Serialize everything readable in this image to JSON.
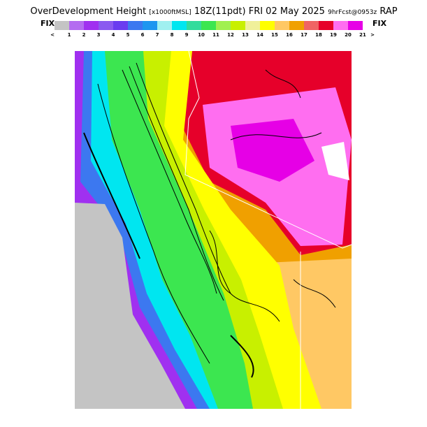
{
  "header": {
    "title_parts": [
      "OverDevelopment Height",
      "[x1000ftMSL]",
      "18Z(11pdt) FRI 02 May 2025",
      "9hrFcst@0953z",
      "RAP"
    ],
    "left_label": "FIX",
    "right_label": "FIX"
  },
  "legend": {
    "labels": [
      "<",
      "1",
      "2",
      "3",
      "4",
      "5",
      "6",
      "7",
      "8",
      "9",
      "10",
      "11",
      "12",
      "13",
      "14",
      "15",
      "16",
      "17",
      "18",
      "19",
      "20",
      "21",
      ">"
    ],
    "colors": [
      "#c4c4c4",
      "#b46cf0",
      "#a030f0",
      "#8a5af0",
      "#6a3cf0",
      "#3c78f0",
      "#1e96f0",
      "#a0f0f0",
      "#00e6f0",
      "#32dc9c",
      "#3ce650",
      "#a0f050",
      "#c8f000",
      "#f0f09a",
      "#ffff00",
      "#ffc864",
      "#f0a000",
      "#f06464",
      "#e6002a",
      "#ff6ef0",
      "#e600e6"
    ]
  }
}
